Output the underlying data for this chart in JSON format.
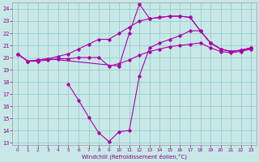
{
  "xlabel": "Windchill (Refroidissement éolien,°C)",
  "background_color": "#c8e8e8",
  "grid_color": "#99cccc",
  "line_color": "#aa00aa",
  "xlim": [
    -0.5,
    23.5
  ],
  "ylim": [
    12.8,
    24.5
  ],
  "xticks": [
    0,
    1,
    2,
    3,
    4,
    5,
    6,
    7,
    8,
    9,
    10,
    11,
    12,
    13,
    14,
    15,
    16,
    17,
    18,
    19,
    20,
    21,
    22,
    23
  ],
  "yticks": [
    13,
    14,
    15,
    16,
    17,
    18,
    19,
    20,
    21,
    22,
    23,
    24
  ],
  "line1_x": [
    0,
    1,
    2,
    3,
    4,
    5,
    6,
    7,
    8,
    9,
    10,
    11,
    12,
    13,
    14,
    15,
    16,
    17,
    18,
    19,
    20,
    21,
    22,
    23
  ],
  "line1_y": [
    20.3,
    19.7,
    19.8,
    19.9,
    20.1,
    20.3,
    20.7,
    21.1,
    21.5,
    21.5,
    22.0,
    22.5,
    23.0,
    23.2,
    23.3,
    23.4,
    23.4,
    23.3,
    22.2,
    21.2,
    20.7,
    20.5,
    20.6,
    20.8
  ],
  "line2_x": [
    0,
    1,
    2,
    3,
    10,
    11,
    12,
    13,
    14,
    15,
    16,
    17,
    18,
    19,
    20,
    21,
    22,
    23
  ],
  "line2_y": [
    20.3,
    19.7,
    19.8,
    19.9,
    19.3,
    22.0,
    24.4,
    23.2,
    23.3,
    23.4,
    23.4,
    23.3,
    22.2,
    21.2,
    20.7,
    20.5,
    20.6,
    20.8
  ],
  "line3_x": [
    5,
    6,
    7,
    8,
    9,
    10,
    11,
    12,
    13,
    14,
    15,
    16,
    17,
    18,
    19,
    20,
    21,
    22,
    23
  ],
  "line3_y": [
    17.8,
    16.5,
    15.1,
    13.8,
    13.1,
    13.9,
    14.0,
    18.5,
    20.8,
    21.2,
    21.5,
    21.8,
    22.2,
    22.2,
    21.2,
    20.7,
    20.5,
    20.6,
    20.8
  ],
  "line4_x": [
    0,
    1,
    2,
    3,
    4,
    5,
    6,
    7,
    8,
    9,
    10,
    11,
    12,
    13,
    14,
    15,
    16,
    17,
    18,
    19,
    20,
    21,
    22,
    23
  ],
  "line4_y": [
    20.3,
    19.7,
    19.7,
    19.8,
    19.9,
    19.9,
    20.0,
    20.0,
    20.0,
    19.3,
    19.5,
    19.8,
    20.2,
    20.5,
    20.7,
    20.9,
    21.0,
    21.1,
    21.2,
    20.8,
    20.5,
    20.4,
    20.5,
    20.7
  ]
}
